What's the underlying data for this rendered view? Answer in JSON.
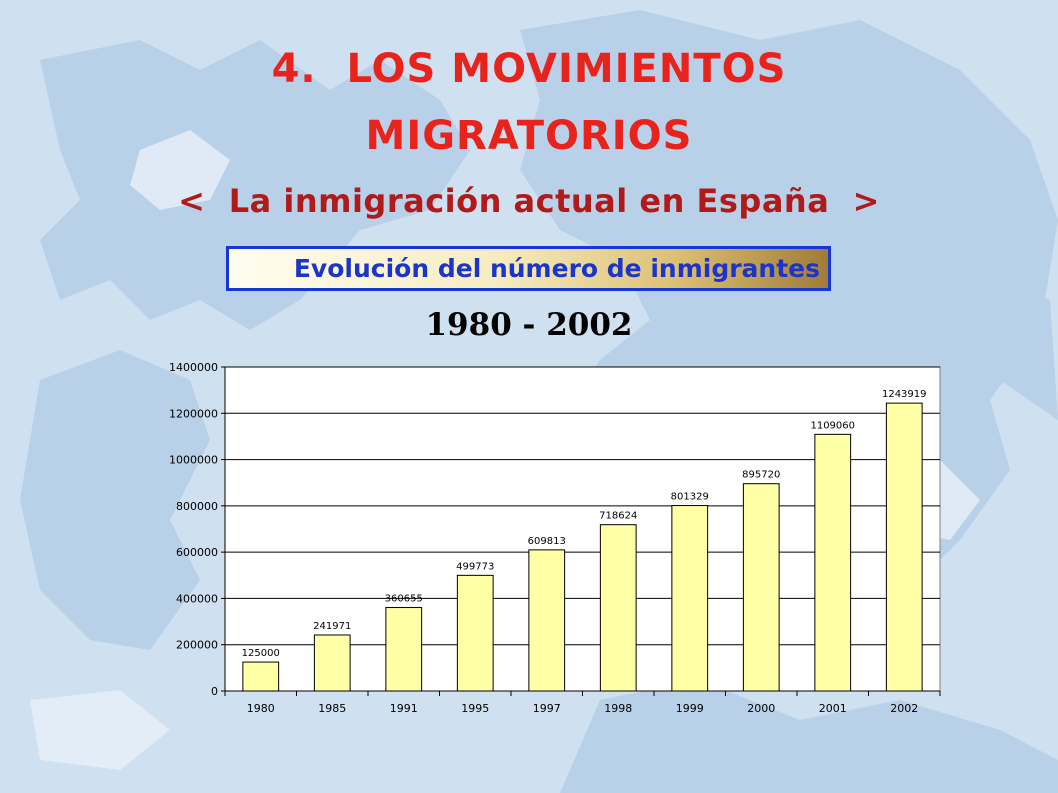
{
  "slide": {
    "title_line1": "4.  LOS MOVIMIENTOS",
    "title_line2": "MIGRATORIOS",
    "subtitle": "<  La inmigración actual en España  >",
    "banner": "Evolución del número de inmigrantes",
    "period": "1980 - 2002"
  },
  "colors": {
    "title": "#e8231c",
    "banner_border": "#1637d8",
    "bar_fill": "#ffffa6",
    "background": "#cfe0f1"
  },
  "chart_data": {
    "type": "bar",
    "categories": [
      "1980",
      "1985",
      "1991",
      "1995",
      "1997",
      "1998",
      "1999",
      "2000",
      "2001",
      "2002"
    ],
    "values": [
      125000,
      241971,
      360655,
      499773,
      609813,
      718624,
      801329,
      895720,
      1109060,
      1243919
    ],
    "ylim": [
      0,
      1400000
    ],
    "yticks": [
      0,
      200000,
      400000,
      600000,
      800000,
      1000000,
      1200000,
      1400000
    ],
    "grid": true,
    "legend": "none"
  }
}
